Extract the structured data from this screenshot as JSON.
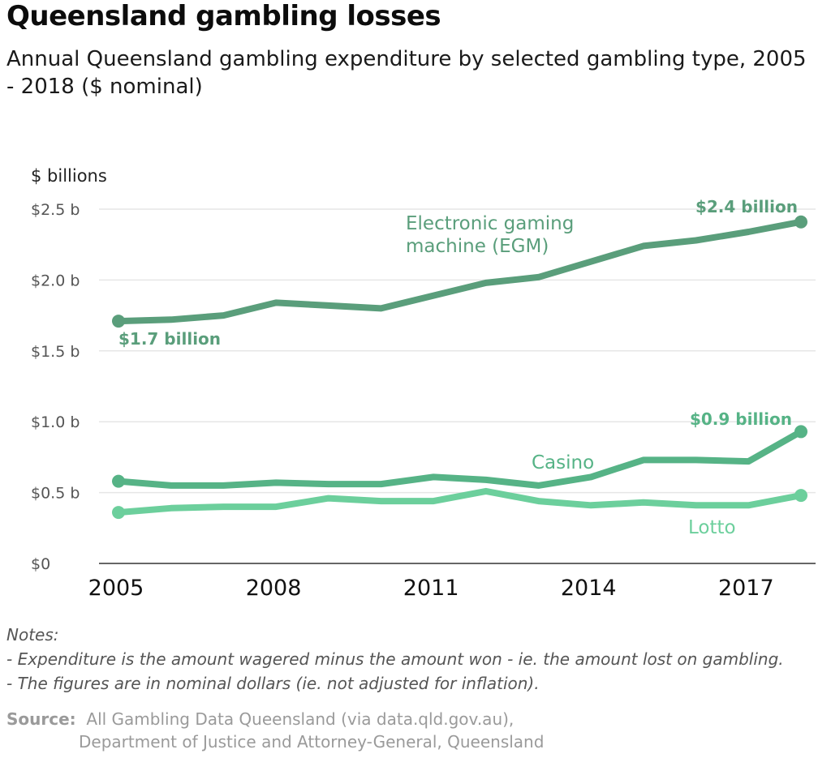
{
  "title": "Queensland gambling losses",
  "subtitle": "Annual Queensland gambling expenditure by selected gambling type, 2005 - 2018 ($ nominal)",
  "colors": {
    "egm": "#5a9e7b",
    "casino": "#56b386",
    "lotto": "#6ccf9c",
    "grid": "#e6e6e6",
    "axis": "#666666"
  },
  "chart_data": {
    "type": "line",
    "ylabel": "$ billions",
    "ylim": [
      0,
      2.5
    ],
    "xlim": [
      2005,
      2018
    ],
    "y_ticks": [
      {
        "value": 0,
        "label": "$0"
      },
      {
        "value": 0.5,
        "label": "$0.5 b"
      },
      {
        "value": 1.0,
        "label": "$1.0 b"
      },
      {
        "value": 1.5,
        "label": "$1.5 b"
      },
      {
        "value": 2.0,
        "label": "$2.0 b"
      },
      {
        "value": 2.5,
        "label": "$2.5 b"
      }
    ],
    "x_ticks": [
      {
        "value": 2005,
        "label": "2005"
      },
      {
        "value": 2008,
        "label": "2008"
      },
      {
        "value": 2011,
        "label": "2011"
      },
      {
        "value": 2014,
        "label": "2014"
      },
      {
        "value": 2017,
        "label": "2017"
      }
    ],
    "grid": true,
    "x": [
      2005,
      2006,
      2007,
      2008,
      2009,
      2010,
      2011,
      2012,
      2013,
      2014,
      2015,
      2016,
      2017,
      2018
    ],
    "series": [
      {
        "key": "egm",
        "name": "Electronic gaming machine (EGM)",
        "values": [
          1.71,
          1.72,
          1.75,
          1.84,
          1.82,
          1.8,
          1.89,
          1.98,
          2.02,
          2.13,
          2.24,
          2.28,
          2.34,
          2.41
        ],
        "start_label": "$1.7 billion",
        "end_label": "$2.4 billion"
      },
      {
        "key": "casino",
        "name": "Casino",
        "values": [
          0.58,
          0.55,
          0.55,
          0.57,
          0.56,
          0.56,
          0.61,
          0.59,
          0.55,
          0.61,
          0.73,
          0.73,
          0.72,
          0.93
        ],
        "end_label": "$0.9 billion"
      },
      {
        "key": "lotto",
        "name": "Lotto",
        "values": [
          0.36,
          0.39,
          0.4,
          0.4,
          0.46,
          0.44,
          0.44,
          0.51,
          0.44,
          0.41,
          0.43,
          0.41,
          0.41,
          0.48
        ]
      }
    ]
  },
  "notes": {
    "heading": "Notes:",
    "lines": [
      "- Expenditure is the amount wagered minus the amount won - ie. the amount lost on gambling.",
      "- The figures are in nominal dollars (ie. not adjusted for inflation)."
    ]
  },
  "source": {
    "label": "Source:",
    "line1": "All Gambling Data Queensland  (via data.qld.gov.au),",
    "line2": "Department of Justice and Attorney-General, Queensland"
  }
}
